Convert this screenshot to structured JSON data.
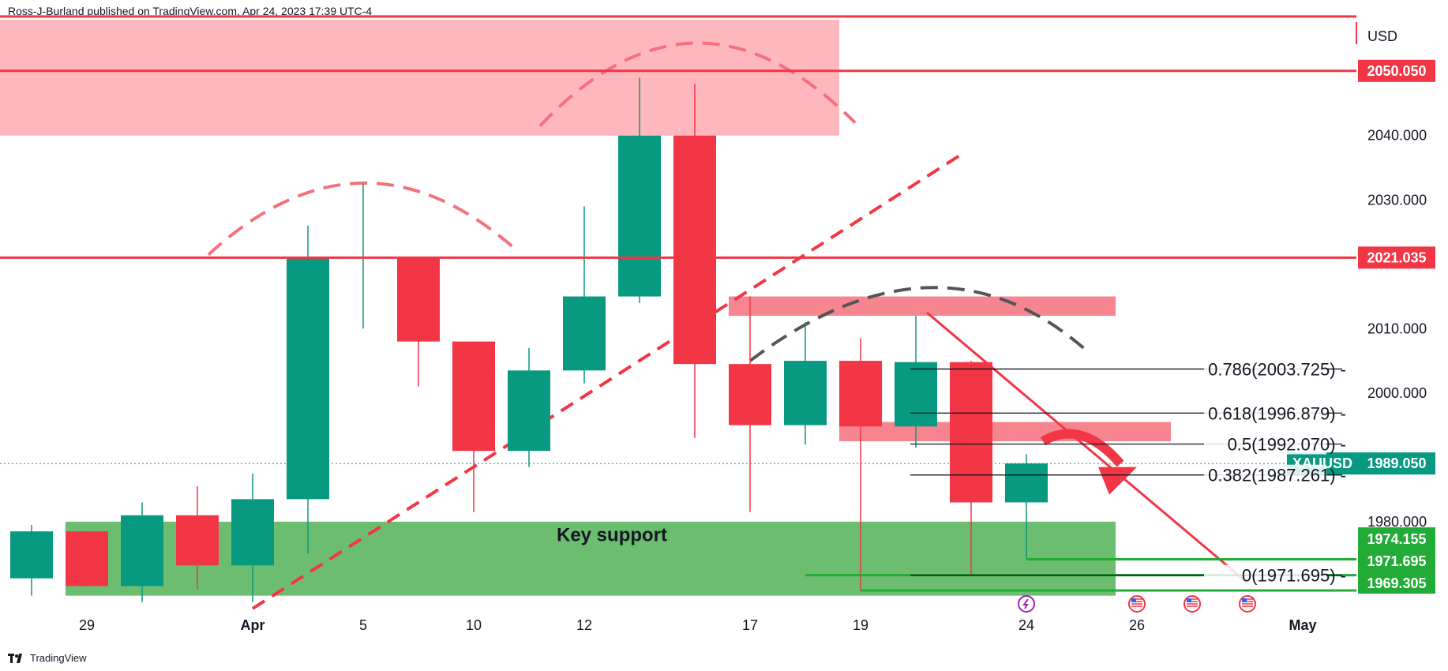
{
  "header": {
    "published": "Ross-J-Burland published on TradingView.com, Apr 24, 2023 17:39 UTC-4"
  },
  "footer": {
    "brand": "TradingView"
  },
  "colors": {
    "up": "#089981",
    "down": "#f23645",
    "resistance_zone": "#ffb3bb",
    "support_zone": "#4caf50",
    "fib_line": "#131722",
    "support_line": "#22ab36",
    "price_tag_up": "#089981",
    "dashed_dark": "#555555"
  },
  "chart_data": {
    "type": "candlestick",
    "symbol": "XAUUSD",
    "currency": "USD",
    "last_price": "1989.050",
    "ylim": [
      1966,
      2058
    ],
    "y_ticks": [
      "2040.000",
      "2030.000",
      "2010.000",
      "2000.000",
      "1980.000"
    ],
    "x_ticks": [
      {
        "label": "29",
        "slot": 1
      },
      {
        "label": "Apr",
        "slot": 4
      },
      {
        "label": "5",
        "slot": 6
      },
      {
        "label": "10",
        "slot": 8
      },
      {
        "label": "12",
        "slot": 10
      },
      {
        "label": "17",
        "slot": 13
      },
      {
        "label": "19",
        "slot": 15
      },
      {
        "label": "24",
        "slot": 18
      },
      {
        "label": "26",
        "slot": 20
      },
      {
        "label": "May",
        "slot": 23
      }
    ],
    "candles": [
      {
        "slot": 0,
        "o": 1971.2,
        "h": 1979.5,
        "l": 1968.5,
        "c": 1978.5
      },
      {
        "slot": 1,
        "o": 1978.5,
        "h": 1978.5,
        "l": 1970.0,
        "c": 1970.0
      },
      {
        "slot": 2,
        "o": 1970.0,
        "h": 1983.0,
        "l": 1967.5,
        "c": 1981.0
      },
      {
        "slot": 3,
        "o": 1981.0,
        "h": 1985.5,
        "l": 1969.5,
        "c": 1973.2
      },
      {
        "slot": 4,
        "o": 1973.2,
        "h": 1987.5,
        "l": 1967.5,
        "c": 1983.5
      },
      {
        "slot": 5,
        "o": 1983.5,
        "h": 2026.0,
        "l": 1975.0,
        "c": 2021.0
      },
      {
        "slot": 6,
        "o": 2021.0,
        "h": 2032.5,
        "l": 2010.0,
        "c": 2021.2
      },
      {
        "slot": 7,
        "o": 2021.2,
        "h": 2021.2,
        "l": 2001.0,
        "c": 2008.0
      },
      {
        "slot": 8,
        "o": 2008.0,
        "h": 2008.0,
        "l": 1981.5,
        "c": 1991.0
      },
      {
        "slot": 9,
        "o": 1991.0,
        "h": 2007.0,
        "l": 1988.5,
        "c": 2003.5
      },
      {
        "slot": 10,
        "o": 2003.5,
        "h": 2029.0,
        "l": 2001.5,
        "c": 2015.0
      },
      {
        "slot": 11,
        "o": 2015.0,
        "h": 2049.0,
        "l": 2014.0,
        "c": 2040.0
      },
      {
        "slot": 12,
        "o": 2040.0,
        "h": 2048.0,
        "l": 1993.0,
        "c": 2004.5
      },
      {
        "slot": 13,
        "o": 2004.5,
        "h": 2015.0,
        "l": 1981.5,
        "c": 1995.0
      },
      {
        "slot": 14,
        "o": 1995.0,
        "h": 2011.0,
        "l": 1992.0,
        "c": 2005.0
      },
      {
        "slot": 15,
        "o": 2005.0,
        "h": 2008.5,
        "l": 1969.3,
        "c": 1994.8
      },
      {
        "slot": 16,
        "o": 1994.8,
        "h": 2012.0,
        "l": 1991.5,
        "c": 2004.8
      },
      {
        "slot": 17,
        "o": 2004.8,
        "h": 2005.0,
        "l": 1971.7,
        "c": 1983.0
      },
      {
        "slot": 18,
        "o": 1983.0,
        "h": 1990.5,
        "l": 1974.2,
        "c": 1989.05
      }
    ],
    "horizontal_lines": [
      {
        "price": 2058.5,
        "label": ""
      },
      {
        "price": 2050.05,
        "label": "2050.050"
      },
      {
        "price": 2021.035,
        "label": "2021.035"
      }
    ],
    "support_lines": [
      {
        "price": 1974.155,
        "label": "1974.155"
      },
      {
        "price": 1971.695,
        "label": "1971.695"
      },
      {
        "price": 1969.305,
        "label": "1969.305"
      }
    ],
    "fibonacci": [
      {
        "label": "0.786(2003.725)",
        "price": 2003.725
      },
      {
        "label": "0.618(1996.879)",
        "price": 1996.879
      },
      {
        "label": "0.5(1992.070)",
        "price": 1992.07
      },
      {
        "label": "0.382(1987.261)",
        "price": 1987.261
      },
      {
        "label": "0(1971.695)",
        "price": 1971.695
      }
    ],
    "zones": [
      {
        "name": "resistance-top",
        "price_top": 2058.5,
        "price_bottom": 2040.0,
        "slot_from": -0.5,
        "slot_to": 15.0
      },
      {
        "name": "resistance-mid",
        "price_top": 2015.0,
        "price_bottom": 2012.0,
        "slot_from": 13.0,
        "slot_to": 20.0
      },
      {
        "name": "resistance-low",
        "price_top": 1995.5,
        "price_bottom": 1992.5,
        "slot_from": 15.0,
        "slot_to": 21.0
      },
      {
        "name": "key-support",
        "price_top": 1980.0,
        "price_bottom": 1968.5,
        "slot_from": 1.0,
        "slot_to": 20.0,
        "label": "Key support"
      }
    ]
  }
}
